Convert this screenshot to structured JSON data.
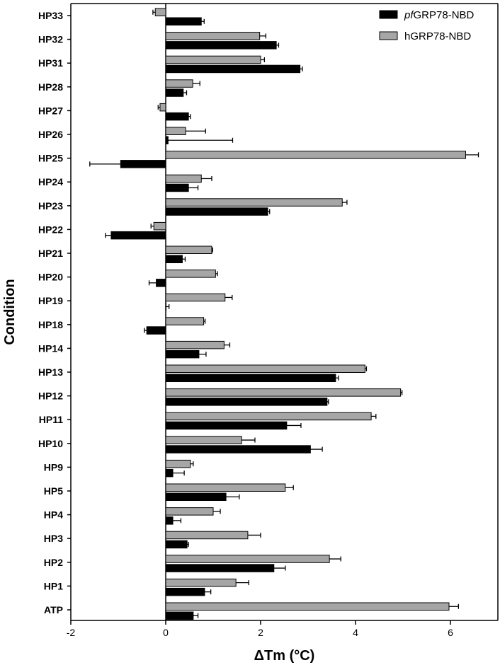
{
  "chart_data": {
    "type": "bar",
    "orientation": "horizontal",
    "xlabel": "ΔTm (°C)",
    "ylabel": "Condition",
    "xlim": [
      -2,
      7
    ],
    "xticks": [
      "-2",
      "0",
      "2",
      "4",
      "6"
    ],
    "grid": false,
    "legend_position": "top-right",
    "categories": [
      "HP33",
      "HP32",
      "HP31",
      "HP28",
      "HP27",
      "HP26",
      "HP25",
      "HP24",
      "HP23",
      "HP22",
      "HP21",
      "HP20",
      "HP19",
      "HP18",
      "HP14",
      "HP13",
      "HP12",
      "HP11",
      "HP10",
      "HP9",
      "HP5",
      "HP4",
      "HP3",
      "HP2",
      "HP1",
      "ATP"
    ],
    "series": [
      {
        "name_prefix": "pf",
        "name_suffix": "GRP78-NBD",
        "name": "pfGRP78-NBD",
        "color": "#000000",
        "values": [
          0.75,
          2.33,
          2.83,
          0.37,
          0.48,
          0.05,
          -0.95,
          0.48,
          2.15,
          -1.15,
          0.35,
          -0.2,
          0.0,
          -0.4,
          0.7,
          3.58,
          3.4,
          2.55,
          3.05,
          0.15,
          1.27,
          0.15,
          0.45,
          2.28,
          0.82,
          0.58
        ],
        "errors": [
          0.06,
          0.05,
          0.05,
          0.07,
          0.04,
          1.36,
          0.65,
          0.2,
          0.04,
          0.12,
          0.06,
          0.15,
          0.07,
          0.05,
          0.15,
          0.06,
          0.03,
          0.3,
          0.25,
          0.24,
          0.28,
          0.17,
          0.03,
          0.24,
          0.13,
          0.1
        ]
      },
      {
        "name": "hGRP78-NBD",
        "color": "#a6a6a6",
        "values": [
          -0.22,
          1.98,
          2.0,
          0.57,
          -0.12,
          0.42,
          6.32,
          0.75,
          3.72,
          -0.25,
          0.97,
          1.05,
          1.25,
          0.8,
          1.23,
          4.2,
          4.95,
          4.33,
          1.6,
          0.52,
          2.52,
          1.0,
          1.73,
          3.45,
          1.48,
          5.97
        ],
        "errors": [
          0.05,
          0.13,
          0.08,
          0.15,
          0.04,
          0.42,
          0.27,
          0.22,
          0.1,
          0.06,
          0.02,
          0.04,
          0.15,
          0.03,
          0.12,
          0.03,
          0.03,
          0.1,
          0.28,
          0.06,
          0.17,
          0.15,
          0.27,
          0.24,
          0.27,
          0.2
        ]
      }
    ]
  }
}
